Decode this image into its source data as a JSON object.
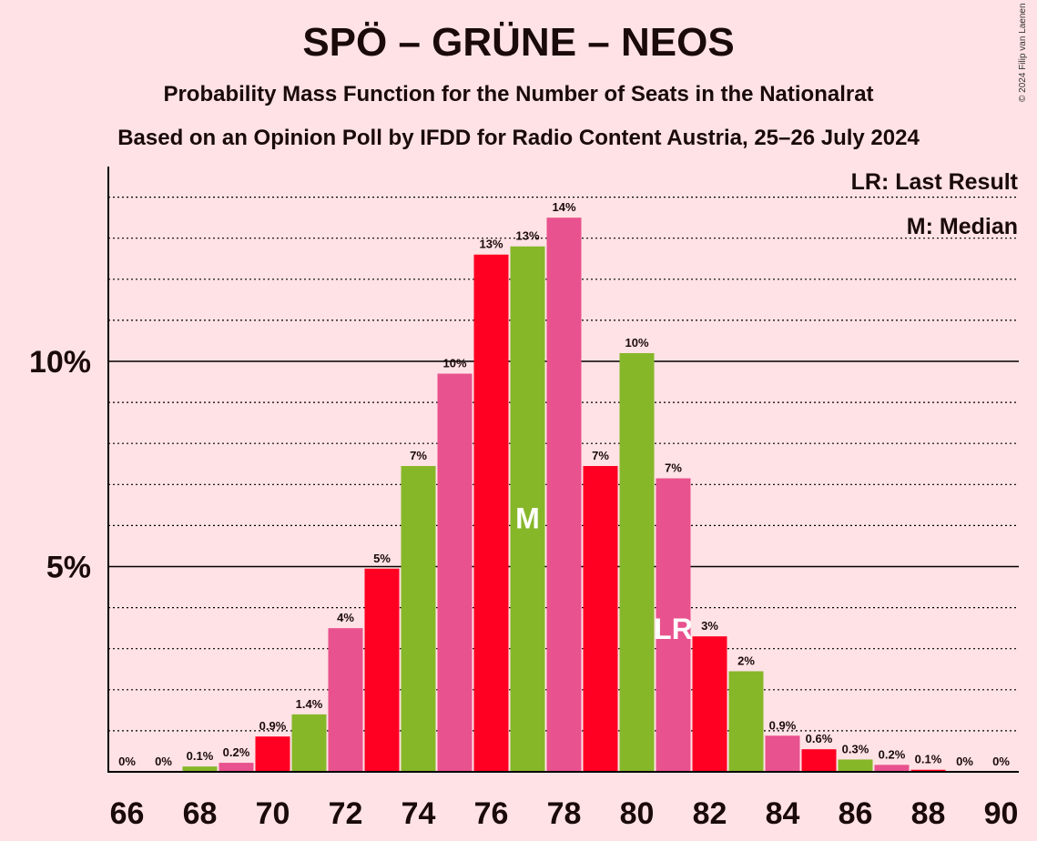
{
  "chart_data": {
    "type": "bar",
    "title": "SPÖ – GRÜNE – NEOS",
    "subtitle1": "Probability Mass Function for the Number of Seats in the Nationalrat",
    "subtitle2": "Based on an Opinion Poll by IFDD for Radio Content Austria, 25–26 July 2024",
    "copyright": "© 2024 Filip van Laenen",
    "legend": {
      "lr": "LR: Last Result",
      "m": "M: Median",
      "position": "top-right"
    },
    "xlim": [
      66,
      90
    ],
    "ylim": [
      0,
      14.7
    ],
    "x_tick_labels": [
      "66",
      "68",
      "70",
      "72",
      "74",
      "76",
      "78",
      "80",
      "82",
      "84",
      "86",
      "88",
      "90"
    ],
    "y_ticks": [
      {
        "value": 5,
        "label": "5%"
      },
      {
        "value": 10,
        "label": "10%"
      }
    ],
    "minor_grid_step": 1,
    "colors": {
      "red": "#FF0022",
      "green": "#86B729",
      "pink": "#E8528E",
      "background": "#FFE2E5"
    },
    "color_cycle": [
      "pink",
      "red",
      "green"
    ],
    "median": 77,
    "last_result": 81,
    "median_mark": "M",
    "last_result_mark": "LR",
    "bars": [
      {
        "x": 66,
        "value": 0,
        "label": "0%"
      },
      {
        "x": 67,
        "value": 0,
        "label": "0%"
      },
      {
        "x": 68,
        "value": 0.13,
        "label": "0.1%"
      },
      {
        "x": 69,
        "value": 0.22,
        "label": "0.2%"
      },
      {
        "x": 70,
        "value": 0.86,
        "label": "0.9%"
      },
      {
        "x": 71,
        "value": 1.4,
        "label": "1.4%"
      },
      {
        "x": 72,
        "value": 3.5,
        "label": "4%"
      },
      {
        "x": 73,
        "value": 4.95,
        "label": "5%"
      },
      {
        "x": 74,
        "value": 7.45,
        "label": "7%"
      },
      {
        "x": 75,
        "value": 9.7,
        "label": "10%"
      },
      {
        "x": 76,
        "value": 12.6,
        "label": "13%"
      },
      {
        "x": 77,
        "value": 12.8,
        "label": "13%"
      },
      {
        "x": 78,
        "value": 13.5,
        "label": "14%"
      },
      {
        "x": 79,
        "value": 7.45,
        "label": "7%"
      },
      {
        "x": 80,
        "value": 10.2,
        "label": "10%"
      },
      {
        "x": 81,
        "value": 7.15,
        "label": "7%"
      },
      {
        "x": 82,
        "value": 3.3,
        "label": "3%"
      },
      {
        "x": 83,
        "value": 2.45,
        "label": "2%"
      },
      {
        "x": 84,
        "value": 0.88,
        "label": "0.9%"
      },
      {
        "x": 85,
        "value": 0.55,
        "label": "0.6%"
      },
      {
        "x": 86,
        "value": 0.3,
        "label": "0.3%"
      },
      {
        "x": 87,
        "value": 0.17,
        "label": "0.2%"
      },
      {
        "x": 88,
        "value": 0.05,
        "label": "0.1%"
      },
      {
        "x": 89,
        "value": 0,
        "label": "0%"
      },
      {
        "x": 90,
        "value": 0,
        "label": "0%"
      }
    ]
  }
}
